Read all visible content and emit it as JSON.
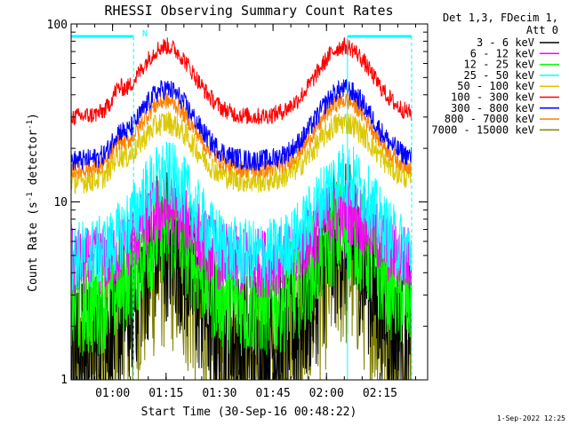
{
  "chart_data": {
    "type": "line",
    "title": "RHESSI Observing Summary Count Rates",
    "xlabel": "Start Time (30-Sep-16 00:48:22)",
    "ylabel_main": "Count Rate (s",
    "ylabel_sup": "-1",
    "ylabel_tail": " detector",
    "ylabel_close": ")",
    "yscale": "log",
    "ylim": [
      1,
      100
    ],
    "xlim_minutes": [
      0,
      100
    ],
    "x_tick_minutes": [
      11.63,
      26.63,
      41.63,
      56.63,
      71.63,
      86.63
    ],
    "x_tick_labels": [
      "01:00",
      "01:15",
      "01:30",
      "01:45",
      "02:00",
      "02:15"
    ],
    "y_tick_values": [
      1,
      10,
      100
    ],
    "y_tick_labels": [
      "1",
      "10",
      "100"
    ],
    "legend_header": [
      "Det 1,3, FDecim 1,",
      "Att 0"
    ],
    "legend_position": "right",
    "top_bar_label": "N",
    "bar_segments_minutes": [
      [
        0,
        17.5
      ],
      [
        77.5,
        95.5
      ]
    ],
    "markers_minutes": [
      {
        "minute": 0,
        "style": "dashed"
      },
      {
        "minute": 17.5,
        "style": "dashed"
      },
      {
        "minute": 77.5,
        "style": "solid"
      },
      {
        "minute": 95.5,
        "style": "dashed"
      }
    ],
    "peak_minutes": [
      26.6,
      76.6
    ],
    "trough_minute": 51.6,
    "series": [
      {
        "name": "3 - 6 keV",
        "color": "#000000",
        "base": 1.5,
        "peak": 6,
        "noise": 0.45
      },
      {
        "name": "6 - 12 keV",
        "color": "#ff00ff",
        "base": 4.5,
        "peak": 9,
        "noise": 0.2
      },
      {
        "name": "12 - 25 keV",
        "color": "#00ff00",
        "base": 2.6,
        "peak": 7,
        "noise": 0.3
      },
      {
        "name": "25 - 50 keV",
        "color": "#00ffff",
        "base": 5,
        "peak": 14,
        "noise": 0.2
      },
      {
        "name": "50 - 100 keV",
        "color": "#dcc800",
        "base": 13,
        "peak": 28,
        "noise": 0.07
      },
      {
        "name": "100 - 300 keV",
        "color": "#ff0000",
        "base": 30,
        "peak": 75,
        "noise": 0.05
      },
      {
        "name": "300 - 800 keV",
        "color": "#0000ff",
        "base": 17,
        "peak": 43,
        "noise": 0.06
      },
      {
        "name": "800 - 7000 keV",
        "color": "#ff8000",
        "base": 15,
        "peak": 37,
        "noise": 0.05
      },
      {
        "name": "7000 - 15000 keV",
        "color": "#808000",
        "base": 1.3,
        "peak": 4.5,
        "noise": 0.5
      }
    ],
    "colors": {
      "bar": "#00ffff",
      "marker": "#00ffff"
    }
  },
  "footer": {
    "timestamp": "1-Sep-2022 12:25"
  }
}
